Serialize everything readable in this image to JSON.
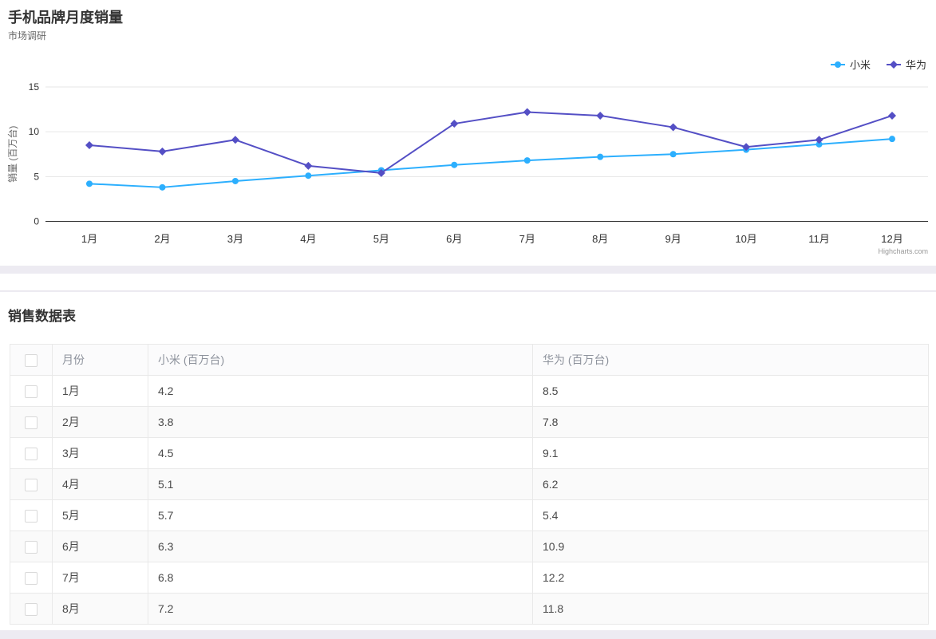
{
  "chart": {
    "title": "手机品牌月度销量",
    "subtitle": "市场调研",
    "credits": "Highcharts.com"
  },
  "chart_data": {
    "type": "line",
    "title": "手机品牌月度销量",
    "subtitle": "市场调研",
    "categories": [
      "1月",
      "2月",
      "3月",
      "4月",
      "5月",
      "6月",
      "7月",
      "8月",
      "9月",
      "10月",
      "11月",
      "12月"
    ],
    "series": [
      {
        "name": "小米",
        "color": "#2caffe",
        "marker": "circle",
        "values": [
          4.2,
          3.8,
          4.5,
          5.1,
          5.7,
          6.3,
          6.8,
          7.2,
          7.5,
          8.0,
          8.6,
          9.2
        ]
      },
      {
        "name": "华为",
        "color": "#544fc5",
        "marker": "diamond",
        "values": [
          8.5,
          7.8,
          9.1,
          6.2,
          5.4,
          10.9,
          12.2,
          11.8,
          10.5,
          8.3,
          9.1,
          11.8
        ]
      }
    ],
    "xlabel": "",
    "ylabel": "销量 (百万台)",
    "ylim": [
      0,
      15
    ],
    "yticks": [
      0,
      5,
      10,
      15
    ],
    "grid": true,
    "legend_position": "top-right"
  },
  "table": {
    "section_title": "销售数据表",
    "columns": [
      "月份",
      "小米 (百万台)",
      "华为 (百万台)"
    ],
    "rows": [
      {
        "month": "1月",
        "xiaomi": "4.2",
        "huawei": "8.5",
        "checked": false
      },
      {
        "month": "2月",
        "xiaomi": "3.8",
        "huawei": "7.8",
        "checked": false
      },
      {
        "month": "3月",
        "xiaomi": "4.5",
        "huawei": "9.1",
        "checked": false
      },
      {
        "month": "4月",
        "xiaomi": "5.1",
        "huawei": "6.2",
        "checked": false
      },
      {
        "month": "5月",
        "xiaomi": "5.7",
        "huawei": "5.4",
        "checked": false
      },
      {
        "month": "6月",
        "xiaomi": "6.3",
        "huawei": "10.9",
        "checked": false
      },
      {
        "month": "7月",
        "xiaomi": "6.8",
        "huawei": "12.2",
        "checked": false
      },
      {
        "month": "8月",
        "xiaomi": "7.2",
        "huawei": "11.8",
        "checked": false
      }
    ]
  },
  "colors": {
    "xiaomi": "#2caffe",
    "huawei": "#544fc5",
    "page_background": "#edebf2",
    "card_background": "#ffffff",
    "grid_line": "#e6e6e6",
    "axis_line": "#333333",
    "table_border": "#e9e9e9",
    "row_stripe": "#fafafa",
    "header_text": "#8d929c",
    "credits_text": "#999999"
  }
}
